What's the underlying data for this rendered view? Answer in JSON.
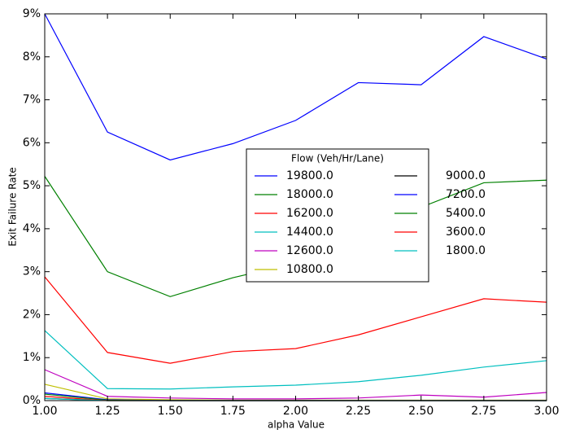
{
  "chart_data": {
    "type": "line",
    "xlabel": "alpha Value",
    "ylabel": "Exit Failure Rate",
    "x": [
      1.0,
      1.25,
      1.5,
      1.75,
      2.0,
      2.25,
      2.5,
      2.75,
      3.0
    ],
    "xlim": [
      1.0,
      3.0
    ],
    "xticks": [
      {
        "value": 1.0,
        "label": "1.00"
      },
      {
        "value": 1.25,
        "label": "1.25"
      },
      {
        "value": 1.5,
        "label": "1.50"
      },
      {
        "value": 1.75,
        "label": "1.75"
      },
      {
        "value": 2.0,
        "label": "2.00"
      },
      {
        "value": 2.25,
        "label": "2.25"
      },
      {
        "value": 2.5,
        "label": "2.50"
      },
      {
        "value": 2.75,
        "label": "2.75"
      },
      {
        "value": 3.0,
        "label": "3.00"
      }
    ],
    "ylim": [
      0,
      9
    ],
    "yticks": [
      {
        "value": 0,
        "label": "0%"
      },
      {
        "value": 1,
        "label": "1%"
      },
      {
        "value": 2,
        "label": "2%"
      },
      {
        "value": 3,
        "label": "3%"
      },
      {
        "value": 4,
        "label": "4%"
      },
      {
        "value": 5,
        "label": "5%"
      },
      {
        "value": 6,
        "label": "6%"
      },
      {
        "value": 7,
        "label": "7%"
      },
      {
        "value": 8,
        "label": "8%"
      },
      {
        "value": 9,
        "label": "9%"
      }
    ],
    "legend_title": "Flow (Veh/Hr/Lane)",
    "series": [
      {
        "name": "19800.0",
        "color": "#0000ff",
        "values": [
          9.0,
          6.25,
          5.6,
          5.98,
          6.52,
          7.4,
          7.35,
          8.47,
          7.95
        ]
      },
      {
        "name": "18000.0",
        "color": "#008000",
        "values": [
          5.22,
          3.0,
          2.42,
          2.86,
          3.2,
          3.8,
          4.5,
          5.07,
          5.13
        ]
      },
      {
        "name": "16200.0",
        "color": "#ff0000",
        "values": [
          2.88,
          1.12,
          0.87,
          1.14,
          1.21,
          1.53,
          1.95,
          2.37,
          2.29
        ]
      },
      {
        "name": "14400.0",
        "color": "#00bfbf",
        "values": [
          1.63,
          0.28,
          0.27,
          0.32,
          0.36,
          0.44,
          0.59,
          0.78,
          0.93
        ]
      },
      {
        "name": "12600.0",
        "color": "#bf00bf",
        "values": [
          0.72,
          0.1,
          0.06,
          0.04,
          0.04,
          0.06,
          0.13,
          0.08,
          0.19
        ]
      },
      {
        "name": "10800.0",
        "color": "#bfbf00",
        "values": [
          0.38,
          0.04,
          0.02,
          0.01,
          0.01,
          0.01,
          0.01,
          0.01,
          0.01
        ]
      },
      {
        "name": "9000.0",
        "color": "#000000",
        "values": [
          0.05,
          0.0,
          0.0,
          0.0,
          0.0,
          0.0,
          0.0,
          0.0,
          0.0
        ]
      },
      {
        "name": "7200.0",
        "color": "#0000ff",
        "values": [
          0.18,
          0.02,
          0.0,
          0.0,
          0.0,
          0.0,
          0.0,
          0.0,
          0.0
        ]
      },
      {
        "name": "5400.0",
        "color": "#008000",
        "values": [
          0.15,
          0.01,
          0.0,
          0.0,
          0.0,
          0.0,
          0.0,
          0.0,
          0.0
        ]
      },
      {
        "name": "3600.0",
        "color": "#ff0000",
        "values": [
          0.1,
          0.0,
          0.0,
          0.0,
          0.0,
          0.0,
          0.0,
          0.0,
          0.0
        ]
      },
      {
        "name": "1800.0",
        "color": "#00bfbf",
        "values": [
          0.05,
          0.0,
          0.0,
          0.0,
          0.0,
          0.0,
          0.0,
          0.0,
          0.0
        ]
      }
    ]
  }
}
